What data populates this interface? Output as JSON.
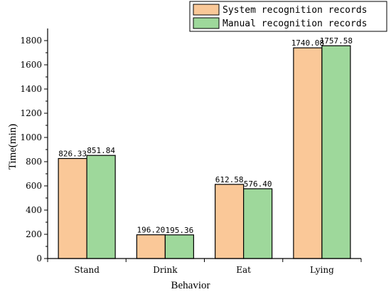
{
  "chart_data": {
    "type": "bar",
    "title": "",
    "xlabel": "Behavior",
    "ylabel": "Time(min)",
    "categories": [
      "Stand",
      "Drink",
      "Eat",
      "Lying"
    ],
    "ylim": [
      0,
      1900
    ],
    "yticks": [
      0,
      200,
      400,
      600,
      800,
      1000,
      1200,
      1400,
      1600,
      1800
    ],
    "grid": false,
    "legend_position": "top-right",
    "series": [
      {
        "name": "System  recognition records",
        "color": "#FAC898",
        "values": [
          826.33,
          196.2,
          612.58,
          1740.08
        ],
        "labels": [
          "826.33",
          "196.20",
          "612.58",
          "1740.08"
        ]
      },
      {
        "name": "Manual recognition records",
        "color": "#9ED89B",
        "values": [
          851.84,
          195.36,
          576.4,
          1757.58
        ],
        "labels": [
          "851.84",
          "195.36",
          "576.40",
          "1757.58"
        ]
      }
    ]
  }
}
